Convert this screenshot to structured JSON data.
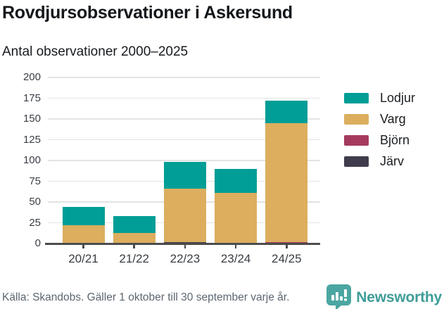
{
  "chart_data": {
    "type": "bar",
    "stacked": true,
    "title": "Rovdjursobservationer i Askersund",
    "subtitle": "Antal observationer 2000–2025",
    "categories": [
      "20/21",
      "21/22",
      "22/23",
      "23/24",
      "24/25"
    ],
    "series": [
      {
        "name": "Lodjur",
        "color": "#009e96",
        "values": [
          22,
          20,
          32,
          29,
          27
        ]
      },
      {
        "name": "Varg",
        "color": "#dcae5e",
        "values": [
          22,
          12,
          64,
          61,
          143
        ]
      },
      {
        "name": "Björn",
        "color": "#a43b5e",
        "values": [
          0,
          1,
          0,
          0,
          2
        ]
      },
      {
        "name": "Järv",
        "color": "#413c4d",
        "values": [
          0,
          0,
          2,
          0,
          0
        ]
      }
    ],
    "stack_order_bottom_to_top": [
      "Järv",
      "Björn",
      "Varg",
      "Lodjur"
    ],
    "totals": [
      44,
      33,
      98,
      90,
      172
    ],
    "ylim": [
      0,
      200
    ],
    "yticks": [
      0,
      25,
      50,
      75,
      100,
      125,
      150,
      175,
      200
    ],
    "grid": true,
    "legend_position": "right"
  },
  "footer": {
    "source": "Källa: Skandobs. Gäller 1 oktober till 30 september varje år.",
    "brand": "Newsworthy",
    "brand_color": "#3e9d98",
    "logo_color": "#4ba6a1"
  }
}
